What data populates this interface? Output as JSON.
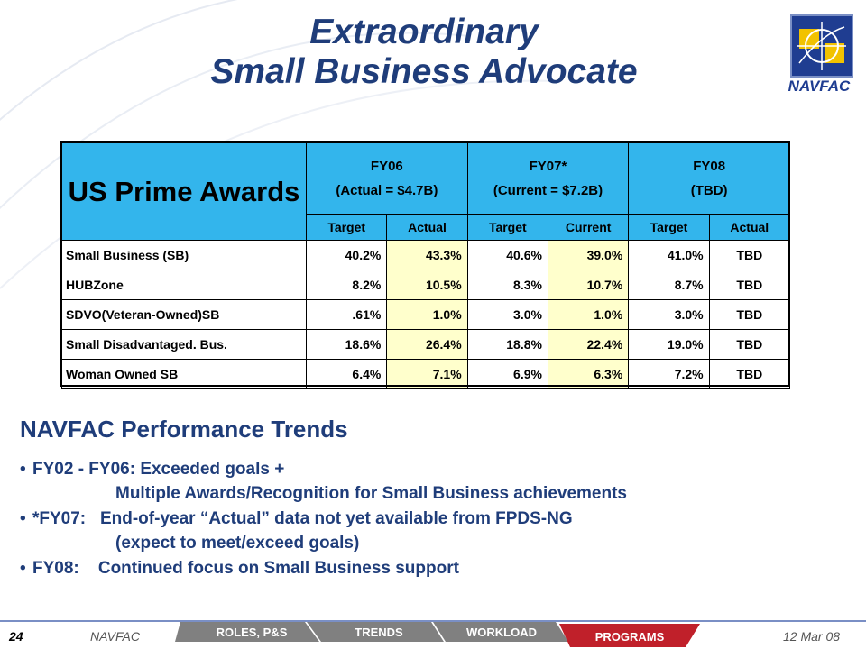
{
  "title": {
    "line1": "Extraordinary",
    "line2": "Small Business Advocate"
  },
  "logo": {
    "text": "NAVFAC"
  },
  "table": {
    "header_title": "US Prime Awards",
    "fy_groups": [
      {
        "fy": "FY06",
        "sub": "(Actual = $4.7B)"
      },
      {
        "fy": "FY07*",
        "sub": "(Current = $7.2B)"
      },
      {
        "fy": "FY08",
        "sub": "(TBD)"
      }
    ],
    "subheaders": [
      "Target",
      "Actual",
      "Target",
      "Current",
      "Target",
      "Actual"
    ],
    "rows": [
      {
        "label": "Small Business (SB)",
        "values": [
          "40.2%",
          "43.3%",
          "40.6%",
          "39.0%",
          "41.0%",
          "TBD"
        ]
      },
      {
        "label": "HUBZone",
        "values": [
          "8.2%",
          "10.5%",
          "8.3%",
          "10.7%",
          "8.7%",
          "TBD"
        ]
      },
      {
        "label": "SDVO(Veteran-Owned)SB",
        "values": [
          ".61%",
          "1.0%",
          "3.0%",
          "1.0%",
          "3.0%",
          "TBD"
        ]
      },
      {
        "label": "Small Disadvantaged. Bus.",
        "values": [
          "18.6%",
          "26.4%",
          "18.8%",
          "22.4%",
          "19.0%",
          "TBD"
        ]
      },
      {
        "label": "Woman Owned SB",
        "values": [
          "6.4%",
          "7.1%",
          "6.9%",
          "6.3%",
          "7.2%",
          "TBD"
        ]
      }
    ]
  },
  "trends": {
    "title": "NAVFAC Performance Trends",
    "bullets": [
      {
        "marker": "•",
        "lines": [
          "FY02 - FY06: Exceeded goals +",
          "Multiple Awards/Recognition for Small Business achievements"
        ]
      },
      {
        "marker": "•",
        "lines": [
          "*FY07:   End-of-year “Actual” data not yet available from FPDS-NG",
          "(expect to meet/exceed goals)"
        ]
      },
      {
        "marker": "•",
        "lines": [
          "FY08:    Continued focus on Small Business support"
        ]
      }
    ]
  },
  "footer": {
    "page": "24",
    "org": "NAVFAC",
    "date": "12 Mar 08",
    "tabs": [
      "ROLES, P&S",
      "TRENDS",
      "WORKLOAD",
      "PROGRAMS"
    ]
  },
  "colors": {
    "title": "#1f3d7a",
    "header_fill": "#33b5ec",
    "actual_fill": "#ffffcc",
    "tab_gray": "#808080",
    "tab_active": "#c0202a"
  }
}
